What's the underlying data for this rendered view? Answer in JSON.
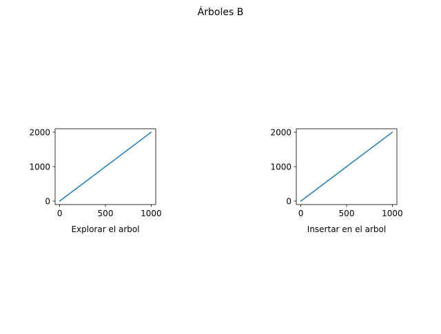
{
  "figure": {
    "title": "Árboles B"
  },
  "style": {
    "line_color": "#1f77b4",
    "axis_color": "#000000"
  },
  "chart_data": [
    {
      "type": "line",
      "title": "",
      "xlabel": "Explorar el arbol",
      "ylabel": "",
      "xlim": [
        -50,
        1050
      ],
      "ylim": [
        -100,
        2100
      ],
      "xticks": [
        0,
        500,
        1000
      ],
      "yticks": [
        0,
        1000,
        2000
      ],
      "grid": false,
      "series": [
        {
          "x": [
            0,
            1000
          ],
          "y": [
            0,
            2000
          ]
        }
      ]
    },
    {
      "type": "line",
      "title": "",
      "xlabel": "Insertar en el arbol",
      "ylabel": "",
      "xlim": [
        -50,
        1050
      ],
      "ylim": [
        -100,
        2100
      ],
      "xticks": [
        0,
        500,
        1000
      ],
      "yticks": [
        0,
        1000,
        2000
      ],
      "grid": false,
      "series": [
        {
          "x": [
            0,
            1000
          ],
          "y": [
            0,
            2000
          ]
        }
      ]
    }
  ]
}
